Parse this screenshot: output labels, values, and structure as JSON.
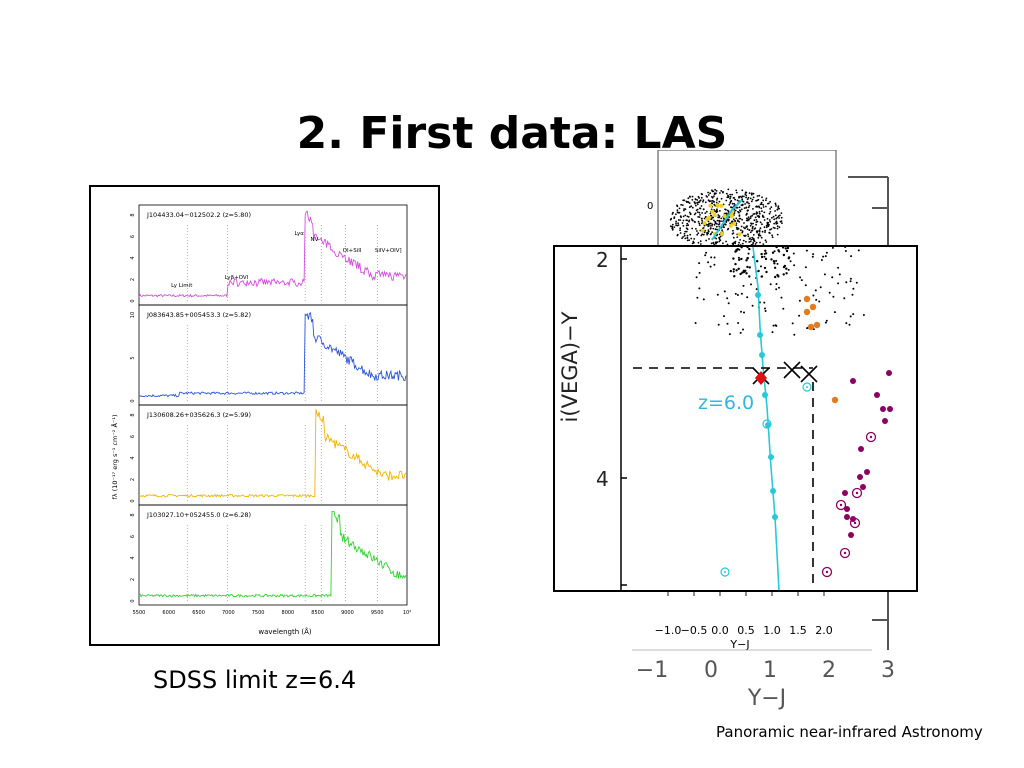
{
  "slide": {
    "title": "2. First data: LAS",
    "caption": "SDSS limit z=6.4",
    "footer": "Panoramic near-infrared Astronomy"
  },
  "spectra": {
    "panels": [
      {
        "label": "J104433.04−012502.2 (z=5.80)",
        "color": "#d44fdf",
        "yticks": [
          "0",
          "2",
          "4",
          "6",
          "8"
        ]
      },
      {
        "label": "J083643.85+005453.3 (z=5.82)",
        "color": "#2f55d6",
        "yticks": [
          "0",
          "5",
          "10"
        ]
      },
      {
        "label": "J130608.26+035626.3 (z=5.99)",
        "color": "#f1b300",
        "yticks": [
          "0",
          "2",
          "4",
          "6",
          "8"
        ]
      },
      {
        "label": "J103027.10+052455.0 (z=6.28)",
        "color": "#2ed42e",
        "yticks": [
          "0",
          "2",
          "4",
          "6",
          "8"
        ]
      }
    ],
    "line_labels": [
      "Ly Limit",
      "Lyβ+OVI",
      "Lyα",
      "NV",
      "OI+SiII",
      "SiIV+OIV]"
    ],
    "xticks": [
      "5500",
      "6000",
      "6500",
      "7000",
      "7500",
      "8000",
      "8500",
      "9000",
      "9500",
      "10⁴"
    ],
    "xlabel": "wavelength (Å)",
    "ylabel": "fλ (10⁻¹⁷ erg s⁻¹ cm⁻² Å⁻¹)"
  },
  "background_plot": {
    "xticks": [
      "−1",
      "0",
      "1",
      "2",
      "3"
    ],
    "xlabel": "Y−J",
    "small_xticks": [
      "−1.0",
      "−0.5",
      "0.0",
      "0.5",
      "1.0",
      "1.5",
      "2.0"
    ],
    "small_xlabel": "Y−J",
    "top_tick": "0"
  },
  "inset": {
    "ylabel": "i(VEGA)−Y",
    "yticks": [
      "2",
      "4"
    ],
    "annotation": "z=6.0",
    "annotation_color": "#2fb7e0",
    "track_color": "#27c9d9",
    "quasar_color": "#e07b20",
    "dwarf_color": "#8b0060",
    "highlight_color": "#e01010"
  }
}
